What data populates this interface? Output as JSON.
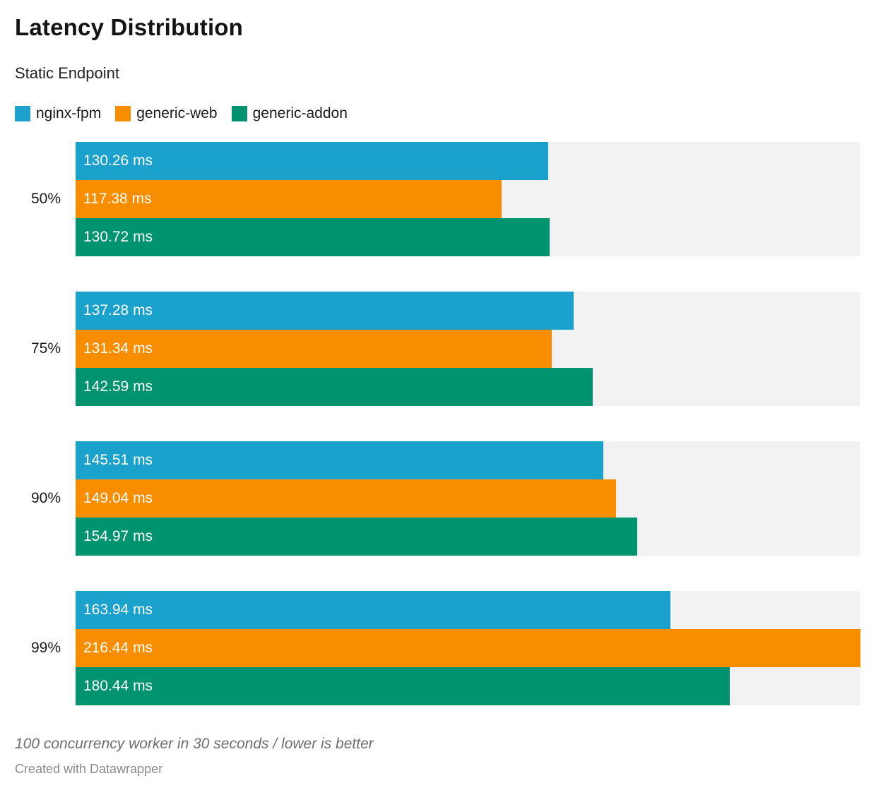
{
  "header": {
    "title": "Latency Distribution",
    "subtitle": "Static Endpoint"
  },
  "legend": {
    "items": [
      {
        "label": "nginx-fpm",
        "color": "#1AA2CC"
      },
      {
        "label": "generic-web",
        "color": "#F98D00"
      },
      {
        "label": "generic-addon",
        "color": "#009370"
      }
    ]
  },
  "chart_data": {
    "type": "bar",
    "orientation": "horizontal",
    "title": "Latency Distribution",
    "subtitle": "Static Endpoint",
    "unit": "ms",
    "value_label_format": "{value} ms",
    "max_value": 216.44,
    "track_color": "#F2F2F2",
    "grid": false,
    "legend_position": "top",
    "categories": [
      "50%",
      "75%",
      "90%",
      "99%"
    ],
    "series": [
      {
        "name": "nginx-fpm",
        "color": "#1AA2CC",
        "values": [
          130.26,
          137.28,
          145.51,
          163.94
        ]
      },
      {
        "name": "generic-web",
        "color": "#F98D00",
        "values": [
          117.38,
          131.34,
          149.04,
          216.44
        ]
      },
      {
        "name": "generic-addon",
        "color": "#009370",
        "values": [
          130.72,
          142.59,
          154.97,
          180.44
        ]
      }
    ]
  },
  "footer": {
    "note": "100 concurrency worker in 30 seconds / lower is better",
    "attribution": "Created with Datawrapper"
  }
}
